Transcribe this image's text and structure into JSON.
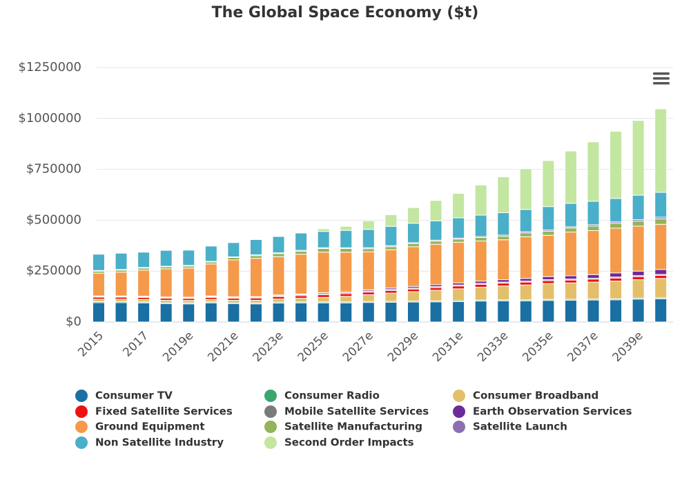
{
  "chart_data": {
    "type": "stacked-bar",
    "title": "The Global Space Economy ($t)",
    "categories": [
      "2015",
      null,
      "2017",
      null,
      "2019e",
      null,
      "2021e",
      null,
      "2023e",
      null,
      "2025e",
      null,
      "2027e",
      null,
      "2029e",
      null,
      "2031e",
      null,
      "2033e",
      null,
      "2035e",
      null,
      "2037e",
      null,
      "2039e",
      null
    ],
    "ylim": [
      0,
      1250000
    ],
    "yticks": [
      {
        "value": 0,
        "label": "$0"
      },
      {
        "value": 250000,
        "label": "$250000"
      },
      {
        "value": 500000,
        "label": "$500000"
      },
      {
        "value": 750000,
        "label": "$750000"
      },
      {
        "value": 1000000,
        "label": "$1000000"
      },
      {
        "value": 1250000,
        "label": "$1250000"
      }
    ],
    "grid": true,
    "series": [
      {
        "name": "Consumer TV",
        "color": "#1a6fa3",
        "values": [
          95000,
          95000,
          94000,
          90000,
          89000,
          94000,
          90000,
          89000,
          93000,
          94000,
          94000,
          94000,
          96000,
          97000,
          98000,
          99000,
          100000,
          103000,
          104000,
          104000,
          106000,
          107000,
          108000,
          109000,
          112000,
          114000
        ]
      },
      {
        "name": "Consumer Radio",
        "color": "#3aa76d",
        "values": [
          5000,
          5000,
          5000,
          5000,
          5000,
          5000,
          5000,
          5000,
          5000,
          5000,
          5000,
          5000,
          5000,
          5000,
          5000,
          5000,
          5000,
          5000,
          5000,
          5000,
          5000,
          5000,
          5000,
          5000,
          5000,
          5000
        ]
      },
      {
        "name": "Consumer Broadband",
        "color": "#e4bf6a",
        "values": [
          12000,
          12000,
          12000,
          12000,
          12000,
          12000,
          12000,
          13000,
          15000,
          18000,
          22000,
          27000,
          33000,
          40000,
          46000,
          52000,
          58000,
          63000,
          68000,
          73000,
          78000,
          80000,
          83000,
          87000,
          91000,
          95000
        ]
      },
      {
        "name": "Fixed Satellite Services",
        "color": "#ee1111",
        "values": [
          10000,
          10000,
          10000,
          10000,
          10000,
          10000,
          10000,
          11000,
          12000,
          12000,
          13000,
          13000,
          13000,
          13000,
          13000,
          13000,
          14000,
          14000,
          14000,
          14000,
          14000,
          14000,
          14000,
          15000,
          15000,
          15000
        ]
      },
      {
        "name": "Mobile Satellite Services",
        "color": "#7a7a7a",
        "values": [
          4000,
          4000,
          4000,
          4000,
          4000,
          4000,
          4000,
          4000,
          4000,
          5000,
          5000,
          5000,
          5000,
          5000,
          5000,
          5000,
          5000,
          5000,
          5000,
          5000,
          5000,
          5000,
          5000,
          5000,
          5000,
          5000
        ]
      },
      {
        "name": "Earth Observation Services",
        "color": "#6d2b9a",
        "values": [
          2000,
          2000,
          2000,
          2000,
          2000,
          3000,
          3000,
          3000,
          4000,
          4000,
          5000,
          5000,
          6000,
          7000,
          8000,
          9000,
          10000,
          11000,
          12000,
          13000,
          15000,
          16000,
          18000,
          20000,
          22000,
          24000
        ]
      },
      {
        "name": "Ground Equipment",
        "color": "#f59a4a",
        "values": [
          112000,
          117000,
          128000,
          138000,
          143000,
          157000,
          181000,
          188000,
          188000,
          195000,
          199000,
          194000,
          187000,
          188000,
          195000,
          199000,
          200000,
          197000,
          196000,
          205000,
          203000,
          215000,
          216000,
          220000,
          221000,
          222000
        ]
      },
      {
        "name": "Satellite Manufacturing",
        "color": "#92b558",
        "values": [
          10000,
          10000,
          10000,
          10000,
          10000,
          10000,
          12000,
          13000,
          15000,
          15000,
          18000,
          18000,
          15000,
          15000,
          15000,
          15000,
          15000,
          17000,
          17000,
          18000,
          20000,
          20000,
          22000,
          24000,
          25000,
          27000
        ]
      },
      {
        "name": "Satellite Launch",
        "color": "#8e6fb0",
        "values": [
          3000,
          3000,
          3000,
          3000,
          3000,
          3000,
          3000,
          4000,
          4000,
          4000,
          4000,
          4000,
          5000,
          5000,
          5000,
          5000,
          5000,
          5000,
          6000,
          6000,
          6000,
          6000,
          7000,
          7000,
          7000,
          8000
        ]
      },
      {
        "name": "Non Satellite Industry",
        "color": "#4aafc9",
        "values": [
          80000,
          80000,
          75000,
          78000,
          75000,
          75000,
          70000,
          75000,
          80000,
          85000,
          80000,
          85000,
          90000,
          95000,
          95000,
          95000,
          100000,
          105000,
          110000,
          110000,
          115000,
          115000,
          115000,
          115000,
          120000,
          122000
        ]
      },
      {
        "name": "Second Order Impacts",
        "color": "#c3e6a0",
        "values": [
          0,
          0,
          0,
          0,
          0,
          0,
          0,
          0,
          0,
          3000,
          13000,
          20000,
          42000,
          57000,
          77000,
          100000,
          120000,
          148000,
          176000,
          200000,
          226000,
          257000,
          292000,
          330000,
          367000,
          410000
        ]
      }
    ]
  }
}
